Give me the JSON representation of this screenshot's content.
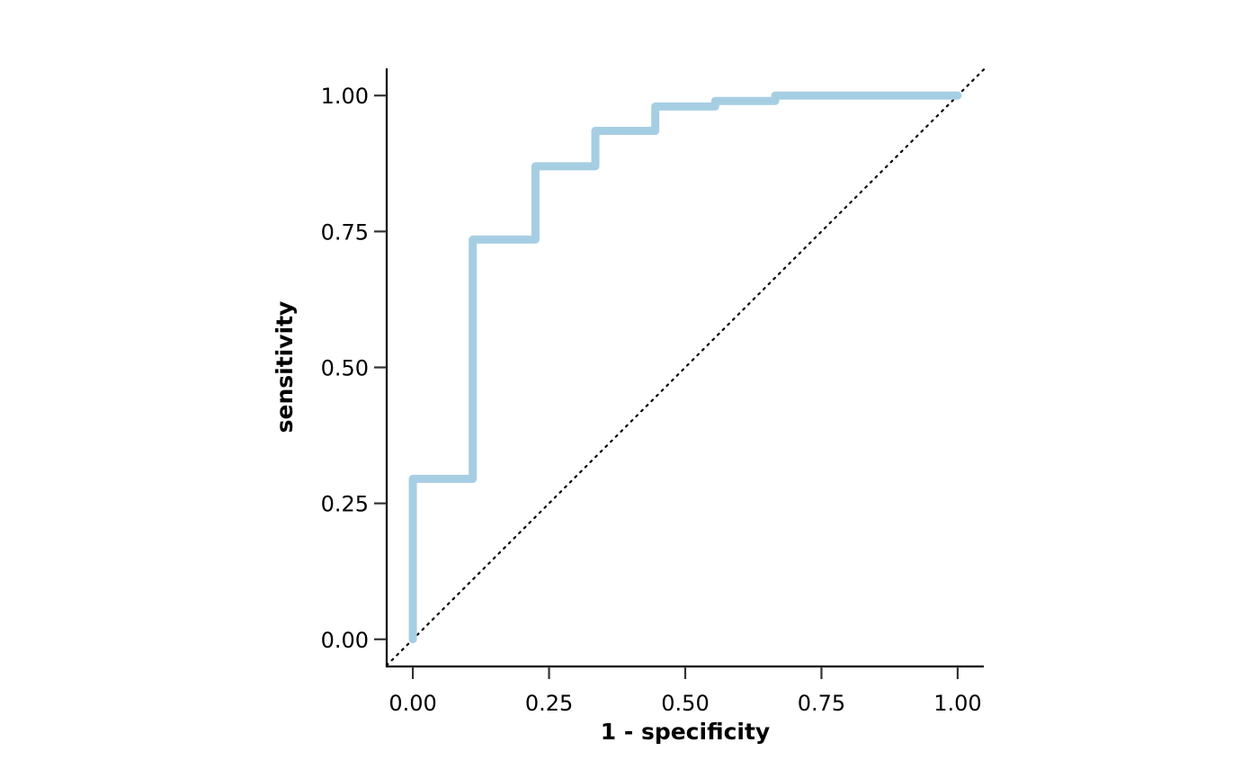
{
  "chart_data": {
    "type": "line",
    "xlabel": "1 - specificity",
    "ylabel": "sensitivity",
    "title": "",
    "xlim": [
      -0.048,
      1.048
    ],
    "ylim": [
      -0.05,
      1.05
    ],
    "x_ticks": [
      0,
      0.25,
      0.5,
      0.75,
      1
    ],
    "y_ticks": [
      0,
      0.25,
      0.5,
      0.75,
      1
    ],
    "x_tick_labels": [
      "0.00",
      "0.25",
      "0.50",
      "0.75",
      "1.00"
    ],
    "y_tick_labels": [
      "0.00",
      "0.25",
      "0.50",
      "0.75",
      "1.00"
    ],
    "grid": false,
    "series": [
      {
        "color": "#a6cee3",
        "style": "step",
        "x": [
          0,
          0,
          0.11,
          0.11,
          0.225,
          0.225,
          0.335,
          0.335,
          0.445,
          0.445,
          0.555,
          0.555,
          0.665,
          0.665,
          1.0
        ],
        "y": [
          0,
          0.295,
          0.295,
          0.735,
          0.735,
          0.87,
          0.87,
          0.935,
          0.935,
          0.98,
          0.98,
          0.99,
          0.99,
          1.0,
          1.0
        ]
      }
    ],
    "reference_line": {
      "x": [
        -0.048,
        1.048
      ],
      "y": [
        -0.048,
        1.048
      ],
      "style": "dotted",
      "color": "#000000"
    }
  }
}
